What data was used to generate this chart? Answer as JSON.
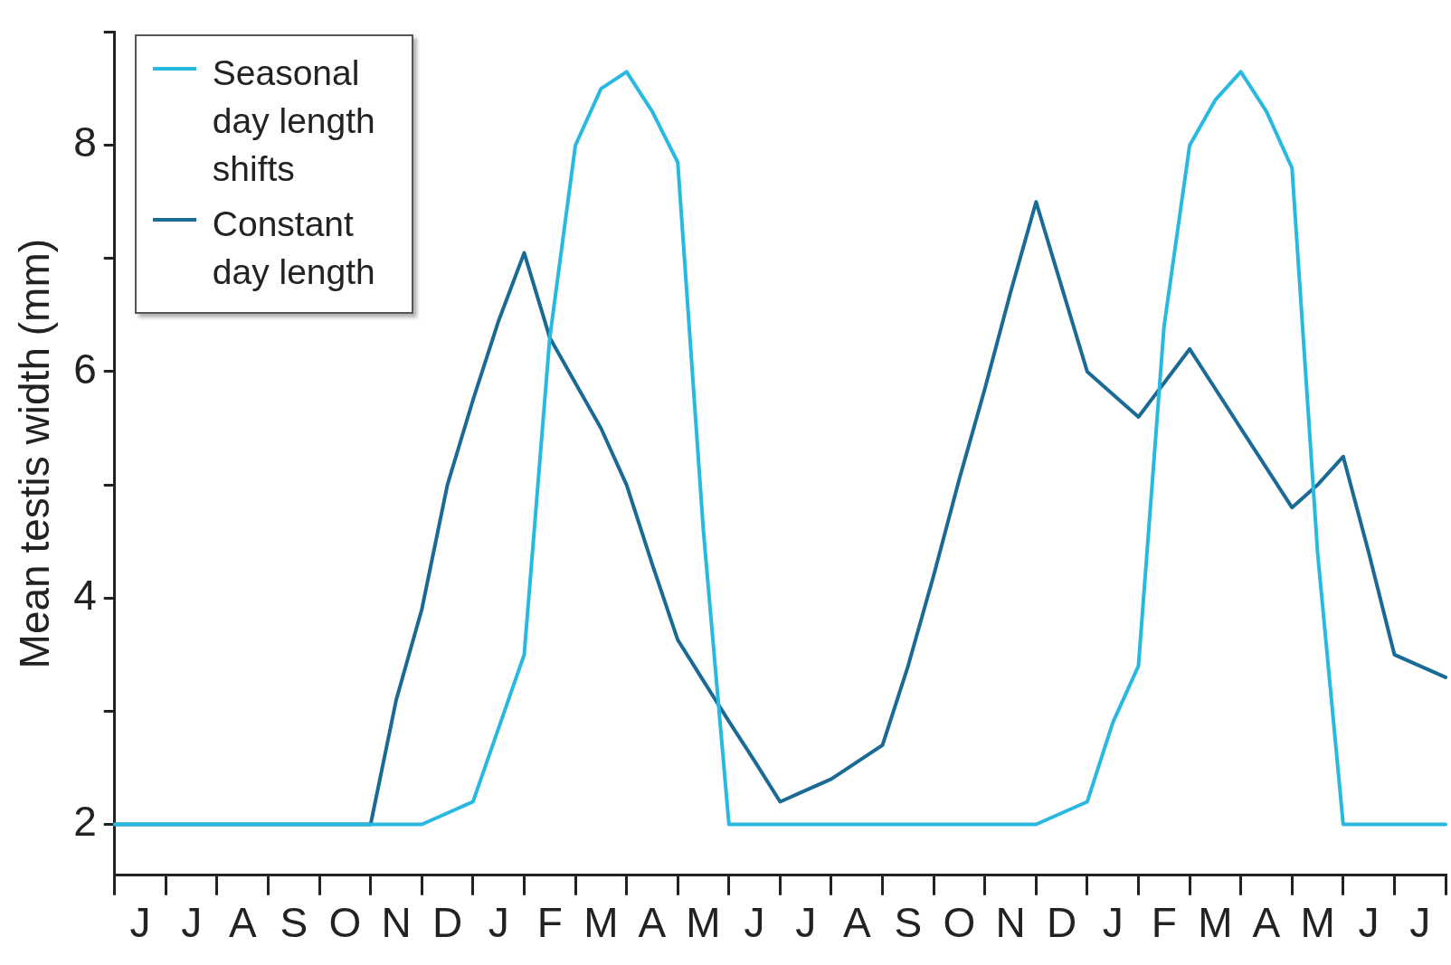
{
  "chart_data": {
    "type": "line",
    "ylabel": "Mean testis width (mm)",
    "categories": [
      null,
      "J",
      null,
      "J",
      null,
      "A",
      null,
      "S",
      null,
      "O",
      null,
      "N",
      null,
      "D",
      null,
      "J",
      null,
      "F",
      null,
      "M",
      null,
      "A",
      null,
      "M",
      null,
      "J",
      null,
      "J",
      null,
      "A",
      null,
      "S",
      null,
      "O",
      null,
      "N",
      null,
      "D",
      null,
      "J",
      null,
      "F",
      null,
      "M",
      null,
      "A",
      null,
      "M",
      null,
      "J",
      null,
      "J",
      null
    ],
    "ylim": [
      1.55,
      9
    ],
    "yticks": [
      2,
      {
        "value": 3,
        "label": null
      },
      4,
      {
        "value": 5,
        "label": null
      },
      6,
      {
        "value": 7,
        "label": null
      },
      8,
      {
        "value": 9,
        "label": null
      }
    ],
    "grid": false,
    "legend": "top left",
    "marker": "none",
    "line_style": "solid",
    "series": [
      {
        "name": "Seasonal day length shifts",
        "color": "#29b8e0",
        "values": [
          2,
          2,
          2,
          2,
          2,
          2,
          2,
          2,
          2,
          2,
          2,
          2,
          2,
          2.1,
          2.2,
          2.85,
          3.5,
          6.3,
          8,
          8.5,
          8.65,
          8.3,
          7.85,
          4.6,
          2,
          2,
          2,
          2,
          2,
          2,
          2,
          2,
          2,
          2,
          2,
          2,
          2,
          2.1,
          2.2,
          2.9,
          3.4,
          6.4,
          8,
          8.4,
          8.65,
          8.3,
          7.8,
          4.4,
          2,
          2,
          2,
          2,
          2
        ]
      },
      {
        "name": "Constant day length",
        "color": "#1a6a96",
        "values": [
          2,
          2,
          2,
          2,
          2,
          2,
          2,
          2,
          2,
          2,
          2,
          3.1,
          3.9,
          5,
          5.75,
          6.45,
          7.05,
          6.3,
          5.9,
          5.5,
          5,
          4.3,
          3.63,
          3.27,
          2.91,
          2.56,
          2.2,
          2.3,
          2.4,
          2.55,
          2.7,
          3.4,
          4.2,
          5.05,
          5.85,
          6.7,
          7.5,
          6.75,
          6,
          5.8,
          5.6,
          5.9,
          6.2,
          5.85,
          5.5,
          5.15,
          4.8,
          5,
          5.25,
          4.4,
          3.5,
          3.4,
          3.3
        ]
      }
    ]
  }
}
